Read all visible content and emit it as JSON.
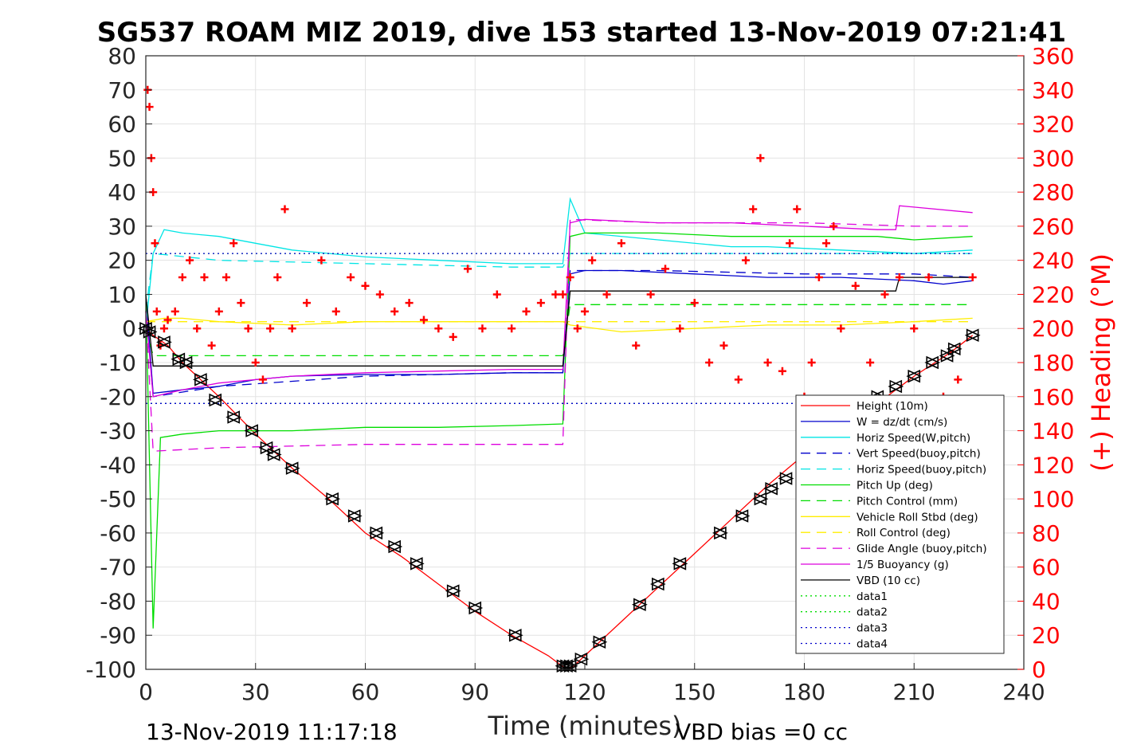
{
  "chart_data": {
    "type": "line",
    "title": "SG537 ROAM MIZ 2019, dive 153 started 13-Nov-2019 07:21:41",
    "xlabel": "Time (minutes)",
    "ylabel": "",
    "y2label": "(+) Heading (°M)",
    "xlim": [
      0,
      240
    ],
    "ylim": [
      -100,
      80
    ],
    "y2lim": [
      0,
      360
    ],
    "xticks": [
      0,
      30,
      60,
      90,
      120,
      150,
      180,
      210,
      240
    ],
    "yticks": [
      -100,
      -90,
      -80,
      -70,
      -60,
      -50,
      -40,
      -30,
      -20,
      -10,
      0,
      10,
      20,
      30,
      40,
      50,
      60,
      70,
      80
    ],
    "y2ticks": [
      0,
      20,
      40,
      60,
      80,
      100,
      120,
      140,
      160,
      180,
      200,
      220,
      240,
      260,
      280,
      300,
      320,
      340,
      360
    ],
    "grid": true,
    "legend_position": "bottom-right",
    "footer_left": "13-Nov-2019 11:17:18",
    "footer_right": "VBD bias =0 cc",
    "colors": {
      "red": "#ff0000",
      "blue": "#0000cc",
      "cyan": "#00e5e5",
      "green": "#00dd00",
      "yellow": "#ffee00",
      "magenta": "#dd00dd",
      "black": "#000000"
    },
    "legend": [
      {
        "label": "Height (10m)",
        "color": "#ff0000",
        "dash": "solid"
      },
      {
        "label": "W = dz/dt (cm/s)",
        "color": "#0000cc",
        "dash": "solid"
      },
      {
        "label": "Horiz Speed(W,pitch)",
        "color": "#00e5e5",
        "dash": "solid"
      },
      {
        "label": "Vert Speed(buoy,pitch)",
        "color": "#0000cc",
        "dash": "dash"
      },
      {
        "label": "Horiz Speed(buoy,pitch)",
        "color": "#00e5e5",
        "dash": "dash"
      },
      {
        "label": "Pitch Up (deg)",
        "color": "#00dd00",
        "dash": "solid"
      },
      {
        "label": "Pitch Control (mm)",
        "color": "#00dd00",
        "dash": "dash"
      },
      {
        "label": "Vehicle Roll Stbd (deg)",
        "color": "#ffee00",
        "dash": "solid"
      },
      {
        "label": "Roll Control (deg)",
        "color": "#ffee00",
        "dash": "dash"
      },
      {
        "label": "Glide Angle (buoy,pitch)",
        "color": "#dd00dd",
        "dash": "dash"
      },
      {
        "label": "1/5 Buoyancy (g)",
        "color": "#dd00dd",
        "dash": "solid"
      },
      {
        "label": "VBD (10 cc)",
        "color": "#000000",
        "dash": "solid"
      },
      {
        "label": "data1",
        "color": "#00dd00",
        "dash": "dot"
      },
      {
        "label": "data2",
        "color": "#00dd00",
        "dash": "dot"
      },
      {
        "label": "data3",
        "color": "#0000cc",
        "dash": "dot"
      },
      {
        "label": "data4",
        "color": "#0000cc",
        "dash": "dot"
      }
    ],
    "series": [
      {
        "name": "Height (10m)",
        "x": [
          0,
          2,
          6,
          10,
          20,
          30,
          40,
          50,
          60,
          70,
          80,
          90,
          100,
          110,
          115,
          117,
          120,
          130,
          140,
          150,
          160,
          170,
          180,
          190,
          200,
          210,
          220,
          226
        ],
        "y": [
          0,
          -2,
          -5,
          -10,
          -20,
          -31,
          -41,
          -50,
          -60,
          -67,
          -75,
          -83,
          -90,
          -96,
          -100,
          -99,
          -96,
          -86,
          -76,
          -66,
          -56,
          -46,
          -37,
          -29,
          -22,
          -14,
          -7,
          -2
        ]
      },
      {
        "name": "W = dz/dt (cm/s)",
        "x": [
          0,
          2,
          10,
          20,
          30,
          40,
          60,
          80,
          100,
          114,
          116,
          120,
          130,
          150,
          170,
          190,
          210,
          218,
          226
        ],
        "y": [
          10,
          -19,
          -18,
          -17,
          -15,
          -14,
          -13.5,
          -13.5,
          -13,
          -13,
          16,
          17,
          17,
          16,
          15,
          15,
          14,
          13,
          14
        ]
      },
      {
        "name": "Horiz Speed(W,pitch)",
        "x": [
          0,
          2,
          5,
          10,
          20,
          30,
          40,
          60,
          80,
          100,
          114,
          116,
          120,
          140,
          160,
          170,
          190,
          210,
          226
        ],
        "y": [
          0,
          22,
          29,
          28,
          27,
          25,
          23,
          21,
          20,
          19,
          19,
          38,
          28,
          26,
          24,
          24,
          23,
          22,
          23
        ]
      },
      {
        "name": "Vert Speed(buoy,pitch)",
        "x": [
          0,
          2,
          20,
          60,
          100,
          114,
          116,
          140,
          180,
          210,
          226
        ],
        "y": [
          5,
          -20,
          -17,
          -14,
          -13,
          -13,
          17,
          17,
          16,
          16,
          15
        ]
      },
      {
        "name": "Horiz Speed(buoy,pitch)",
        "x": [
          0,
          2,
          20,
          60,
          100,
          114,
          116,
          140,
          180,
          210,
          226
        ],
        "y": [
          5,
          22,
          20,
          19,
          18,
          18,
          22,
          22,
          22,
          22,
          22
        ]
      },
      {
        "name": "Pitch Up (deg)",
        "x": [
          0,
          2,
          4,
          10,
          20,
          40,
          60,
          80,
          100,
          114,
          116,
          120,
          140,
          160,
          180,
          200,
          210,
          226
        ],
        "y": [
          10,
          -88,
          -32,
          -31,
          -30,
          -30,
          -29,
          -29,
          -28.5,
          -28,
          27,
          28,
          28,
          27,
          27,
          27,
          26,
          27
        ]
      },
      {
        "name": "Pitch Control (mm)",
        "x": [
          0,
          2,
          114,
          116,
          226
        ],
        "y": [
          0,
          -8,
          -8,
          7,
          7
        ]
      },
      {
        "name": "Vehicle Roll Stbd (deg)",
        "x": [
          0,
          5,
          10,
          20,
          40,
          60,
          80,
          100,
          114,
          116,
          130,
          150,
          170,
          190,
          210,
          226
        ],
        "y": [
          2,
          3,
          3,
          2,
          1,
          2,
          2,
          2,
          2,
          1,
          -1,
          0,
          1,
          1,
          2,
          3
        ]
      },
      {
        "name": "Roll Control (deg)",
        "x": [
          0,
          226
        ],
        "y": [
          2,
          2
        ]
      },
      {
        "name": "Glide Angle (buoy,pitch)",
        "x": [
          0,
          2,
          20,
          60,
          100,
          114,
          116,
          140,
          180,
          210,
          226
        ],
        "y": [
          5,
          -36,
          -35,
          -34,
          -34,
          -34,
          32,
          31,
          31,
          30,
          30
        ]
      },
      {
        "name": "1/5 Buoyancy (g)",
        "x": [
          0,
          2,
          10,
          20,
          30,
          40,
          60,
          80,
          100,
          114,
          116,
          120,
          140,
          160,
          180,
          200,
          205,
          206,
          226
        ],
        "y": [
          5,
          -20,
          -18,
          -16,
          -15,
          -14,
          -13,
          -12.5,
          -12,
          -12,
          31,
          32,
          31,
          31,
          30,
          29,
          29,
          36,
          34
        ]
      },
      {
        "name": "VBD (10 cc)",
        "x": [
          0,
          2,
          114,
          116,
          205,
          206,
          226
        ],
        "y": [
          10,
          -11,
          -11,
          11,
          11,
          15,
          15
        ]
      },
      {
        "name": "data1",
        "x": [
          0,
          226
        ],
        "y": [
          22,
          22
        ]
      },
      {
        "name": "data2",
        "x": [
          0,
          226
        ],
        "y": [
          -22,
          -22
        ]
      },
      {
        "name": "data3",
        "x": [
          0,
          226
        ],
        "y": [
          22,
          22
        ]
      },
      {
        "name": "data4",
        "x": [
          0,
          226
        ],
        "y": [
          -22,
          -22
        ]
      }
    ],
    "heading": {
      "name": "(+) Heading (°M)",
      "x": [
        0.5,
        1,
        1.5,
        2,
        2.5,
        3,
        4,
        5,
        6,
        8,
        10,
        12,
        14,
        16,
        18,
        20,
        22,
        24,
        26,
        28,
        30,
        32,
        34,
        36,
        38,
        40,
        44,
        48,
        52,
        56,
        60,
        64,
        68,
        72,
        76,
        80,
        84,
        88,
        92,
        96,
        100,
        104,
        108,
        112,
        114,
        116,
        118,
        120,
        122,
        126,
        130,
        134,
        138,
        142,
        146,
        150,
        154,
        158,
        162,
        164,
        166,
        168,
        170,
        174,
        176,
        178,
        180,
        182,
        184,
        186,
        188,
        190,
        194,
        198,
        202,
        206,
        210,
        214,
        218,
        222,
        226
      ],
      "y": [
        340,
        330,
        300,
        280,
        250,
        210,
        190,
        200,
        205,
        210,
        230,
        240,
        200,
        230,
        190,
        210,
        230,
        250,
        215,
        200,
        180,
        170,
        200,
        230,
        270,
        200,
        215,
        240,
        210,
        230,
        225,
        220,
        210,
        215,
        205,
        200,
        195,
        235,
        200,
        220,
        200,
        210,
        215,
        220,
        220,
        230,
        200,
        210,
        240,
        220,
        250,
        190,
        220,
        235,
        200,
        215,
        180,
        190,
        170,
        240,
        270,
        300,
        180,
        175,
        250,
        270,
        160,
        180,
        230,
        250,
        260,
        200,
        225,
        180,
        220,
        230,
        200,
        230,
        160,
        170,
        230
      ]
    },
    "markers": {
      "name": "triangle markers on Height",
      "x": [
        0,
        1,
        5,
        9,
        11,
        15,
        19,
        24,
        29,
        33,
        35,
        40,
        51,
        57,
        63,
        68,
        74,
        84,
        90,
        101,
        114,
        115,
        116,
        119,
        124,
        135,
        140,
        146,
        157,
        163,
        168,
        171,
        175,
        200,
        205,
        210,
        215,
        219,
        221,
        226
      ],
      "y": [
        0,
        -1,
        -4,
        -9,
        -10,
        -15,
        -21,
        -26,
        -30,
        -35,
        -37,
        -41,
        -50,
        -55,
        -60,
        -64,
        -69,
        -77,
        -82,
        -90,
        -99,
        -99,
        -99,
        -97,
        -92,
        -81,
        -75,
        -69,
        -60,
        -55,
        -50,
        -47,
        -44,
        -20,
        -17,
        -14,
        -10,
        -8,
        -6,
        -2
      ]
    }
  }
}
